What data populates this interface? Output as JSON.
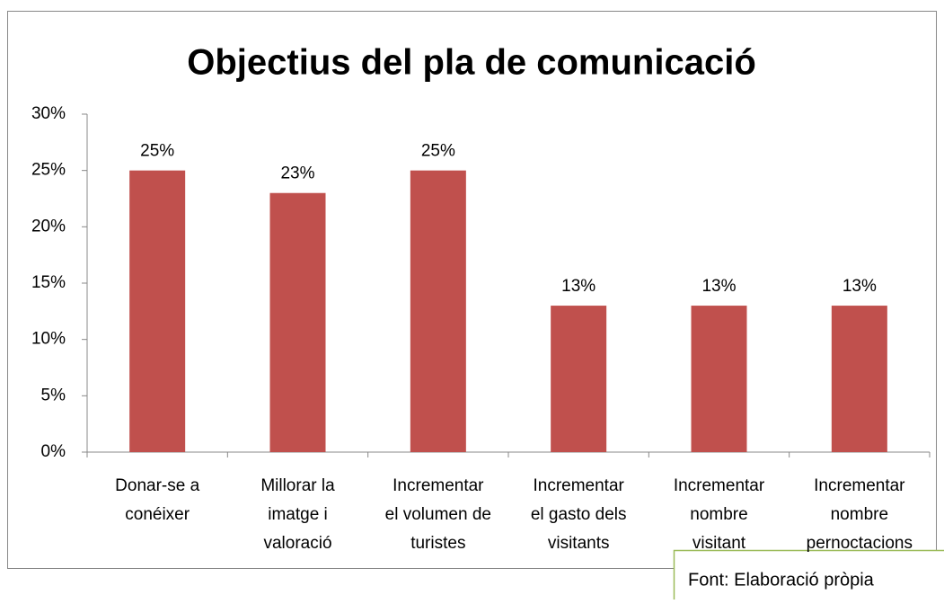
{
  "chart_data": {
    "type": "bar",
    "title": "Objectius del pla de comunicació",
    "categories": [
      "Donar-se a\nconéixer",
      "Millorar la\nimatge i\nvaloració",
      "Incrementar\nel volumen de\nturistes",
      "Incrementar\nel gasto dels\nvisitants",
      "Incrementar\nnombre\nvisitant",
      "Incrementar\nnombre\npernoctacions"
    ],
    "values": [
      25,
      23,
      25,
      13,
      13,
      13
    ],
    "value_labels": [
      "25%",
      "23%",
      "25%",
      "13%",
      "13%",
      "13%"
    ],
    "color": "#c0504d",
    "ylim": [
      0,
      30
    ],
    "yticks": [
      {
        "value": 0,
        "label": "0%"
      },
      {
        "value": 5,
        "label": "5%"
      },
      {
        "value": 10,
        "label": "10%"
      },
      {
        "value": 15,
        "label": "15%"
      },
      {
        "value": 20,
        "label": "20%"
      },
      {
        "value": 25,
        "label": "25%"
      },
      {
        "value": 30,
        "label": "30%"
      }
    ],
    "grid": false,
    "source": "Font: Elaboració pròpia"
  }
}
